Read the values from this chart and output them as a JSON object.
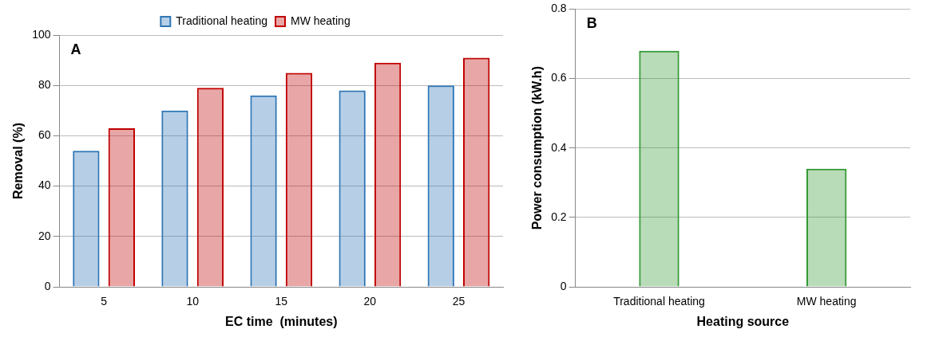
{
  "chart_data": [
    {
      "type": "bar",
      "annotations": [
        "A"
      ],
      "xlabel": "EC time  (minutes)",
      "ylabel": "Removal (%)",
      "categories": [
        "5",
        "10",
        "15",
        "20",
        "25"
      ],
      "series": [
        {
          "name": "Traditional heating",
          "color": "#2e75b6",
          "values": [
            54,
            70,
            76,
            78,
            80
          ]
        },
        {
          "name": "MW heating",
          "color": "#c00000",
          "values": [
            63,
            79,
            85,
            89,
            91
          ]
        }
      ],
      "ylim": [
        0,
        100
      ],
      "yticks": [
        0,
        20,
        40,
        60,
        80,
        100
      ],
      "grid": "y",
      "legend": "top"
    },
    {
      "type": "bar",
      "annotations": [
        "B"
      ],
      "xlabel": "Heating source",
      "ylabel": "Power consumption (kW.h)",
      "categories": [
        "Traditional heating",
        "MW heating"
      ],
      "values": [
        0.68,
        0.34
      ],
      "color": "#339933",
      "ylim": [
        0,
        0.8
      ],
      "yticks": [
        0,
        0.2,
        0.4,
        0.6,
        0.8
      ],
      "grid": "y"
    }
  ]
}
